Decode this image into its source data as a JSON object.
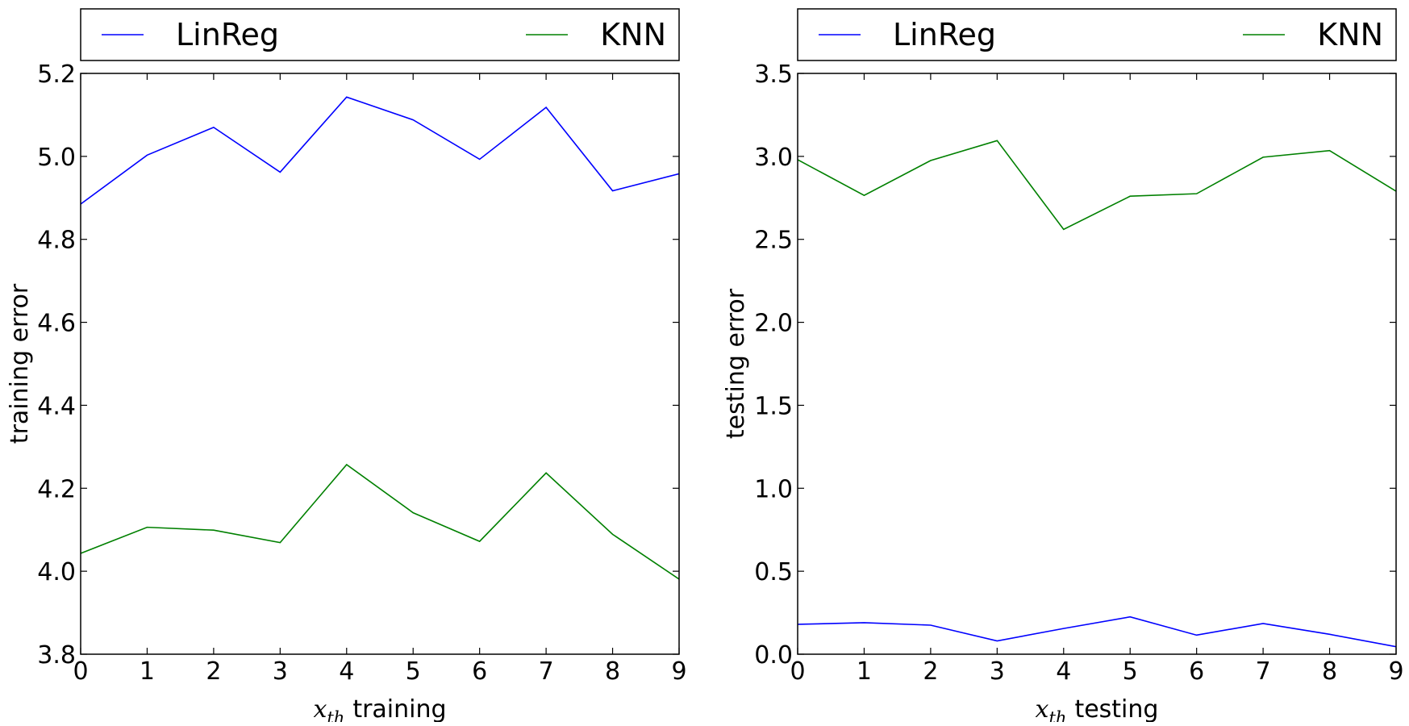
{
  "colors": {
    "LinReg": "#0000ff",
    "KNN": "#008000",
    "axes": "#000000",
    "background": "#ffffff"
  },
  "chart_data": [
    {
      "type": "line",
      "title": "",
      "xlabel_math": "x",
      "xlabel_sub": "th",
      "xlabel_text": "training",
      "ylabel": "training error",
      "x": [
        0,
        1,
        2,
        3,
        4,
        5,
        6,
        7,
        8,
        9
      ],
      "xlim": [
        0,
        9
      ],
      "ylim": [
        3.8,
        5.2
      ],
      "x_ticks": [
        0,
        1,
        2,
        3,
        4,
        5,
        6,
        7,
        8,
        9
      ],
      "x_tick_labels": [
        "0",
        "1",
        "2",
        "3",
        "4",
        "5",
        "6",
        "7",
        "8",
        "9"
      ],
      "y_ticks": [
        3.8,
        4.0,
        4.2,
        4.4,
        4.6,
        4.8,
        5.0,
        5.2
      ],
      "y_tick_labels": [
        "3.8",
        "4.0",
        "4.2",
        "4.4",
        "4.6",
        "4.8",
        "5.0",
        "5.2"
      ],
      "grid": false,
      "legend": {
        "position": "top",
        "entries": [
          "LinReg",
          "KNN"
        ]
      },
      "series": [
        {
          "name": "LinReg",
          "values": [
            4.885,
            5.003,
            5.07,
            4.962,
            5.143,
            5.088,
            4.993,
            5.118,
            4.917,
            4.958
          ]
        },
        {
          "name": "KNN",
          "values": [
            4.043,
            4.106,
            4.099,
            4.069,
            4.257,
            4.141,
            4.072,
            4.237,
            4.089,
            3.981
          ]
        }
      ]
    },
    {
      "type": "line",
      "title": "",
      "xlabel_math": "x",
      "xlabel_sub": "th",
      "xlabel_text": "testing",
      "ylabel": "testing error",
      "x": [
        0,
        1,
        2,
        3,
        4,
        5,
        6,
        7,
        8,
        9
      ],
      "xlim": [
        0,
        9
      ],
      "ylim": [
        0.0,
        3.5
      ],
      "x_ticks": [
        0,
        1,
        2,
        3,
        4,
        5,
        6,
        7,
        8,
        9
      ],
      "x_tick_labels": [
        "0",
        "1",
        "2",
        "3",
        "4",
        "5",
        "6",
        "7",
        "8",
        "9"
      ],
      "y_ticks": [
        0.0,
        0.5,
        1.0,
        1.5,
        2.0,
        2.5,
        3.0,
        3.5
      ],
      "y_tick_labels": [
        "0.0",
        "0.5",
        "1.0",
        "1.5",
        "2.0",
        "2.5",
        "3.0",
        "3.5"
      ],
      "grid": false,
      "legend": {
        "position": "top",
        "entries": [
          "LinReg",
          "KNN"
        ]
      },
      "series": [
        {
          "name": "LinReg",
          "values": [
            0.18,
            0.19,
            0.175,
            0.08,
            0.155,
            0.225,
            0.115,
            0.185,
            0.12,
            0.045
          ]
        },
        {
          "name": "KNN",
          "values": [
            2.98,
            2.765,
            2.975,
            3.095,
            2.56,
            2.76,
            2.775,
            2.995,
            3.035,
            2.79
          ]
        }
      ]
    }
  ]
}
